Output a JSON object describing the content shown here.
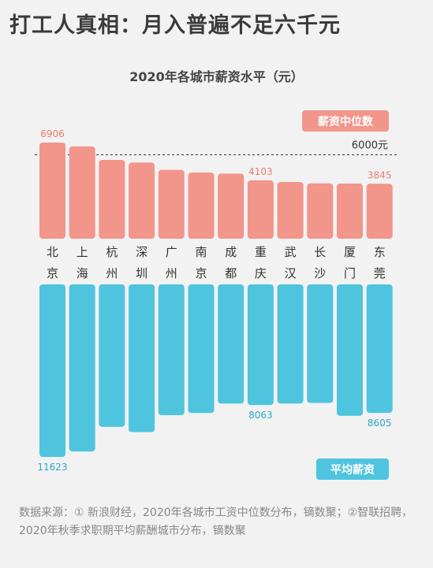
{
  "headline": "打工人真相：月入普遍不足六千元",
  "chart_data": {
    "type": "bar",
    "title": "2020年各城市薪资水平（元）",
    "categories": [
      "北京",
      "上海",
      "杭州",
      "深圳",
      "广州",
      "南京",
      "成都",
      "重庆",
      "武汉",
      "长沙",
      "厦门",
      "东莞"
    ],
    "category_lines": [
      [
        "北",
        "京"
      ],
      [
        "上",
        "海"
      ],
      [
        "杭",
        "州"
      ],
      [
        "深",
        "圳"
      ],
      [
        "广",
        "州"
      ],
      [
        "南",
        "京"
      ],
      [
        "成",
        "都"
      ],
      [
        "重",
        "庆"
      ],
      [
        "武",
        "汉"
      ],
      [
        "长",
        "沙"
      ],
      [
        "厦",
        "门"
      ],
      [
        "东",
        "莞"
      ]
    ],
    "series": [
      {
        "name": "薪资中位数",
        "color": "#f2958a",
        "values": [
          6906,
          6620,
          5620,
          5420,
          4880,
          4680,
          4600,
          4103,
          3980,
          3880,
          3860,
          3845
        ],
        "labeled": {
          "0": "6906",
          "7": "4103",
          "11": "3845"
        }
      },
      {
        "name": "平均薪资",
        "color": "#4fc4df",
        "values": [
          11623,
          11250,
          9560,
          9920,
          8760,
          8610,
          7960,
          8063,
          7960,
          7920,
          8800,
          8605
        ],
        "labeled": {
          "0": "11623",
          "7": "8063",
          "11": "8605"
        }
      }
    ],
    "reference_line": {
      "value": 6000,
      "label": "6000元"
    }
  },
  "source": "数据来源：① 新浪财经，2020年各城市工资中位数分布，镝数聚；②智联招聘，2020年秋季求职期平均薪酬城市分布，镝数聚"
}
